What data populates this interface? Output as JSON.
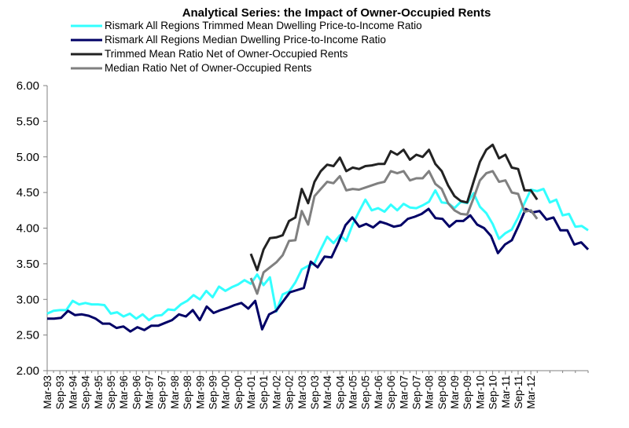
{
  "chart_data": {
    "type": "line",
    "title": "Analytical Series: the Impact of Owner-Occupied Rents",
    "xlabel": "",
    "ylabel": "",
    "ylim": [
      2.0,
      6.0
    ],
    "yticks": [
      "2.00",
      "2.50",
      "3.00",
      "3.50",
      "4.00",
      "4.50",
      "5.00",
      "5.50",
      "6.00"
    ],
    "grid": false,
    "legend_position": "top",
    "x_tick_labels": [
      "Mar-93",
      "Sep-93",
      "Mar-94",
      "Sep-94",
      "Mar-95",
      "Sep-95",
      "Mar-96",
      "Sep-96",
      "Mar-97",
      "Sep-97",
      "Mar-98",
      "Sep-98",
      "Mar-99",
      "Sep-99",
      "Mar-00",
      "Sep-00",
      "Mar-01",
      "Sep-01",
      "Mar-02",
      "Sep-02",
      "Mar-03",
      "Sep-03",
      "Mar-04",
      "Sep-04",
      "Mar-05",
      "Sep-05",
      "Mar-06",
      "Sep-06",
      "Mar-07",
      "Sep-07",
      "Mar-08",
      "Sep-08",
      "Mar-09",
      "Sep-09",
      "Mar-10",
      "Sep-10",
      "Mar-11",
      "Sep-11",
      "Mar-12"
    ],
    "series": [
      {
        "name": "Rismark All Regions Trimmed Mean Dwelling Price-to-Income Ratio",
        "color": "#33FFFF",
        "values": [
          2.8,
          2.84,
          2.85,
          2.85,
          2.98,
          2.93,
          2.95,
          2.93,
          2.93,
          2.92,
          2.8,
          2.82,
          2.76,
          2.8,
          2.73,
          2.79,
          2.71,
          2.77,
          2.78,
          2.86,
          2.85,
          2.93,
          2.98,
          3.06,
          3.0,
          3.12,
          3.03,
          3.18,
          3.12,
          3.17,
          3.21,
          3.27,
          3.22,
          3.35,
          3.2,
          3.31,
          2.83,
          3.07,
          3.11,
          3.24,
          3.42,
          3.47,
          3.51,
          3.7,
          3.88,
          3.79,
          3.9,
          3.82,
          4.05,
          4.23,
          4.4,
          4.25,
          4.28,
          4.23,
          4.33,
          4.25,
          4.34,
          4.29,
          4.28,
          4.32,
          4.37,
          4.53,
          4.36,
          4.35,
          4.28,
          4.37,
          4.35,
          4.49,
          4.3,
          4.21,
          4.06,
          3.85,
          3.93,
          3.98,
          4.15,
          4.35,
          4.54,
          4.52,
          4.55,
          4.36,
          4.4,
          4.18,
          4.2,
          4.02,
          4.03,
          3.97
        ]
      },
      {
        "name": "Rismark All Regions Median Dwelling Price-to-Income Ratio",
        "color": "#000066",
        "values": [
          2.73,
          2.73,
          2.74,
          2.84,
          2.78,
          2.79,
          2.77,
          2.73,
          2.66,
          2.66,
          2.6,
          2.62,
          2.55,
          2.61,
          2.57,
          2.63,
          2.63,
          2.67,
          2.71,
          2.79,
          2.76,
          2.85,
          2.71,
          2.9,
          2.81,
          2.85,
          2.88,
          2.92,
          2.95,
          2.87,
          2.98,
          2.58,
          2.79,
          2.84,
          2.97,
          3.1,
          3.13,
          3.16,
          3.53,
          3.45,
          3.6,
          3.59,
          3.8,
          4.04,
          4.15,
          4.02,
          4.06,
          4.01,
          4.09,
          4.06,
          4.02,
          4.04,
          4.13,
          4.16,
          4.2,
          4.27,
          4.14,
          4.13,
          4.02,
          4.1,
          4.1,
          4.18,
          4.05,
          4.0,
          3.89,
          3.65,
          3.77,
          3.83,
          4.04,
          4.27,
          4.22,
          4.24,
          4.12,
          4.15,
          3.97,
          3.97,
          3.77,
          3.8,
          3.7
        ]
      },
      {
        "name": "Trimmed Mean Ratio Net of Owner-Occupied Rents",
        "color": "#222222",
        "values": [
          3.64,
          3.41,
          3.7,
          3.86,
          3.87,
          3.9,
          4.1,
          4.15,
          4.55,
          4.35,
          4.65,
          4.8,
          4.89,
          4.87,
          4.99,
          4.8,
          4.85,
          4.83,
          4.87,
          4.88,
          4.9,
          4.9,
          5.08,
          5.03,
          5.1,
          4.96,
          5.03,
          5.0,
          5.1,
          4.9,
          4.8,
          4.6,
          4.45,
          4.38,
          4.36,
          4.65,
          4.93,
          5.1,
          5.17,
          4.98,
          5.03,
          4.85,
          4.83,
          4.53,
          4.53,
          4.4
        ]
      },
      {
        "name": "Median Ratio Net of Owner-Occupied Rents",
        "color": "#808080",
        "values": [
          3.3,
          3.08,
          3.38,
          3.45,
          3.52,
          3.62,
          3.82,
          3.83,
          4.24,
          4.05,
          4.45,
          4.55,
          4.65,
          4.63,
          4.73,
          4.53,
          4.55,
          4.54,
          4.57,
          4.6,
          4.63,
          4.65,
          4.8,
          4.77,
          4.8,
          4.67,
          4.7,
          4.7,
          4.8,
          4.62,
          4.55,
          4.35,
          4.25,
          4.2,
          4.19,
          4.42,
          4.67,
          4.77,
          4.8,
          4.65,
          4.67,
          4.5,
          4.48,
          4.23,
          4.25,
          4.13
        ]
      }
    ]
  }
}
